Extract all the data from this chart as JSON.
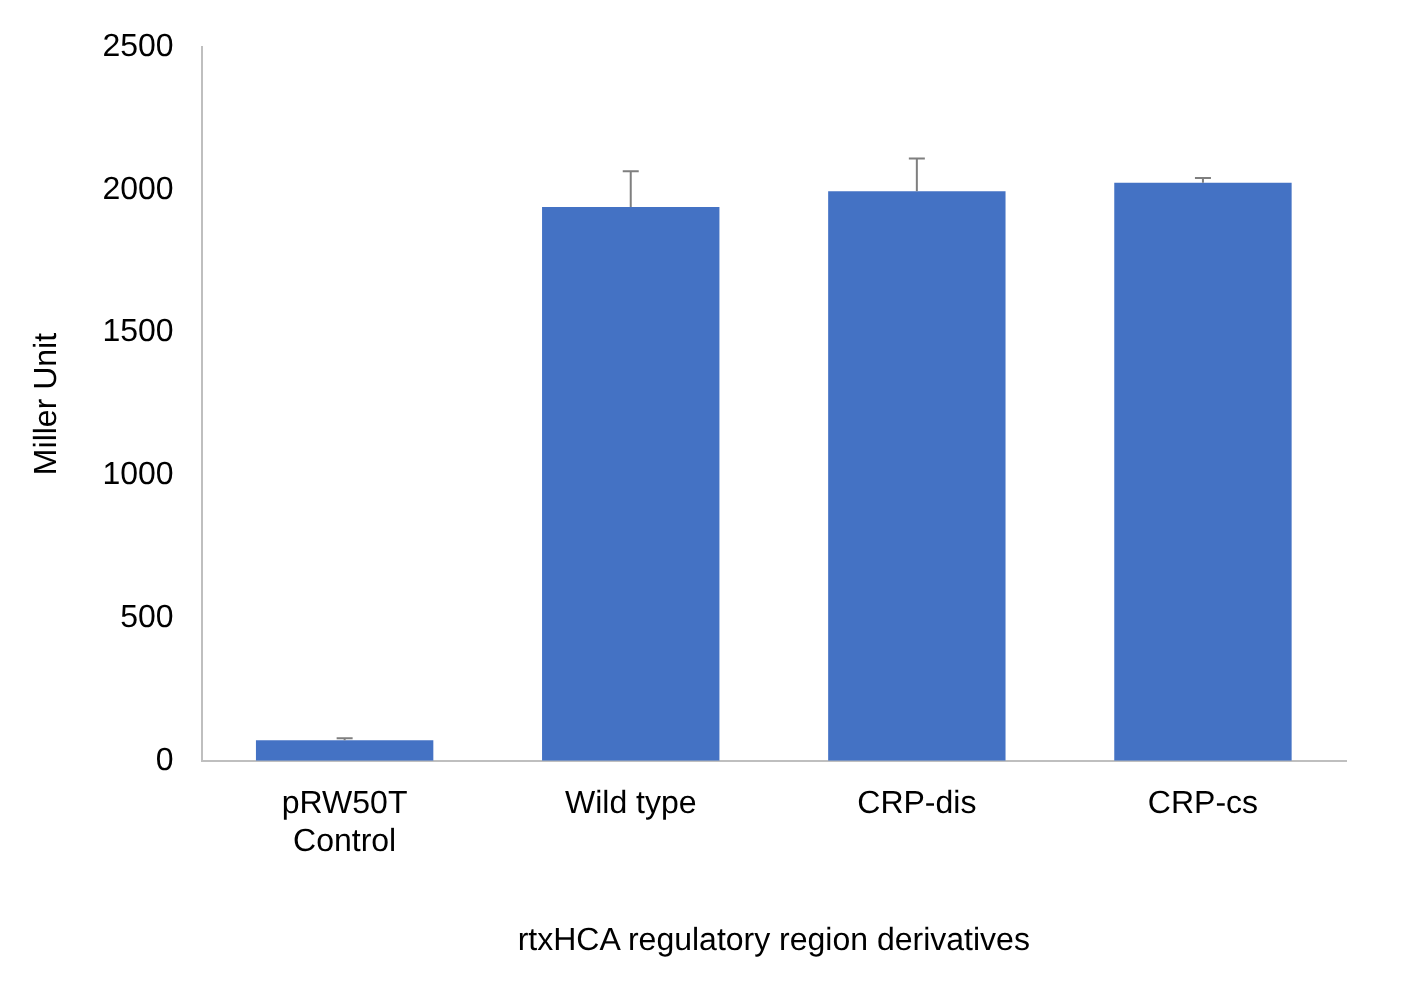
{
  "chart_data": {
    "type": "bar",
    "xlabel": "rtxHCA regulatory region derivatives",
    "ylabel": "Miller Unit",
    "categories": [
      "pRW50T\nControl",
      "Wild type",
      "CRP-dis",
      "CRP-cs"
    ],
    "values": [
      72,
      1940,
      1995,
      2025
    ],
    "errors": [
      7,
      125,
      115,
      17
    ],
    "color": "#4472c4",
    "ylim": [
      0,
      2500
    ],
    "yticks": [
      0,
      500,
      1000,
      1500,
      2000,
      2500
    ],
    "grid": false,
    "legend": false
  }
}
